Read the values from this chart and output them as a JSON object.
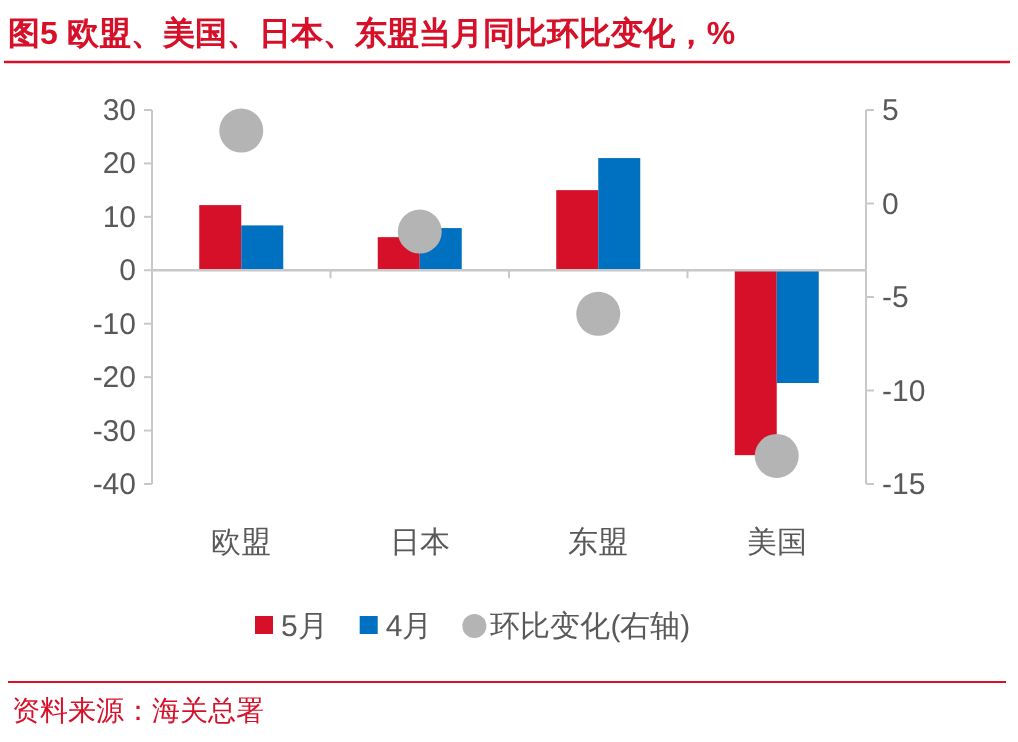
{
  "chart_data": {
    "type": "bar",
    "title": "图5 欧盟、美国、日本、东盟当月同比环比变化，%",
    "categories": [
      "欧盟",
      "日本",
      "东盟",
      "美国"
    ],
    "series": [
      {
        "name": "5月",
        "color": "#d7102a",
        "values": [
          12.2,
          6.2,
          15,
          -34.6
        ]
      },
      {
        "name": "4月",
        "color": "#0070c0",
        "values": [
          8.4,
          7.9,
          21,
          -21.1
        ]
      },
      {
        "name": "环比变化(右轴)",
        "type": "scatter",
        "axis": "y2",
        "marker": "circle",
        "color": "#b4b4b4",
        "values": [
          3.9,
          -1.5,
          -5.9,
          -13.5
        ]
      }
    ],
    "ylim": [
      -40,
      30
    ],
    "yticks": [
      -40,
      -30,
      -20,
      -10,
      0,
      10,
      20,
      30
    ],
    "y2lim": [
      -15,
      5
    ],
    "y2ticks": [
      -15,
      -10,
      -5,
      0,
      5
    ],
    "legend": "bottom",
    "annotations": [
      "资料来源：海关总署"
    ]
  }
}
